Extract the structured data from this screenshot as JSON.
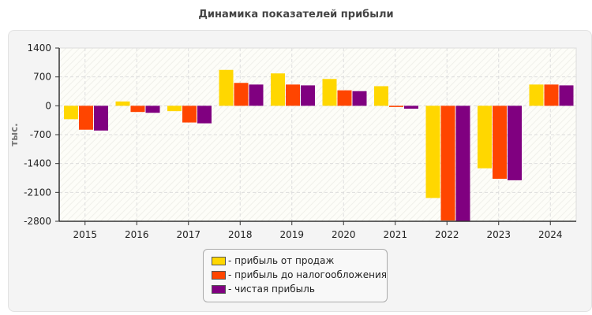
{
  "chart_data": {
    "type": "bar",
    "title": "Динамика показателей прибыли",
    "ylabel": "тыс.",
    "xlabel": "",
    "ylim": [
      -2800,
      1400
    ],
    "yticks": [
      1400,
      700,
      0,
      -700,
      -1400,
      -2100,
      -2800
    ],
    "grid": true,
    "legend_position": "bottom",
    "categories": [
      "2015",
      "2016",
      "2017",
      "2018",
      "2019",
      "2020",
      "2021",
      "2022",
      "2023",
      "2024"
    ],
    "series": [
      {
        "name": "- прибыль от продаж",
        "color": "#FFD700",
        "values": [
          -325,
          105,
          -130,
          870,
          785,
          650,
          475,
          -2235,
          -1515,
          515
        ]
      },
      {
        "name": "- прибыль до налогообложения",
        "color": "#FF4500",
        "values": [
          -580,
          -150,
          -405,
          555,
          515,
          375,
          -30,
          -2780,
          -1770,
          515
        ]
      },
      {
        "name": "- чистая прибыль",
        "color": "#800080",
        "values": [
          -600,
          -170,
          -425,
          515,
          495,
          355,
          -70,
          -2800,
          -1805,
          495
        ]
      }
    ]
  }
}
